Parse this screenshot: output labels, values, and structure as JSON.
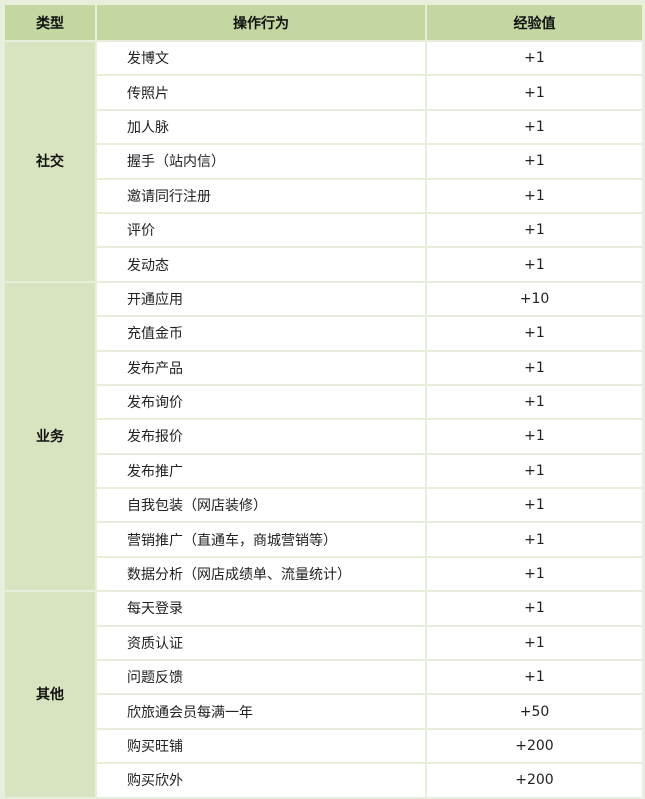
{
  "headers": {
    "type": "类型",
    "action": "操作行为",
    "exp": "经验值"
  },
  "colors": {
    "header_bg": "#c5d7a0",
    "category_bg": "#d8e4bf",
    "border": "#e8eedc"
  },
  "sections": [
    {
      "category": "社交",
      "rows": [
        {
          "action": "发博文",
          "exp": "+1"
        },
        {
          "action": "传照片",
          "exp": "+1"
        },
        {
          "action": "加人脉",
          "exp": "+1"
        },
        {
          "action": "握手（站内信）",
          "exp": "+1"
        },
        {
          "action": "邀请同行注册",
          "exp": "+1"
        },
        {
          "action": "评价",
          "exp": "+1"
        },
        {
          "action": "发动态",
          "exp": "+1"
        }
      ]
    },
    {
      "category": "业务",
      "rows": [
        {
          "action": "开通应用",
          "exp": "+10"
        },
        {
          "action": "充值金币",
          "exp": "+1"
        },
        {
          "action": "发布产品",
          "exp": "+1"
        },
        {
          "action": "发布询价",
          "exp": "+1"
        },
        {
          "action": "发布报价",
          "exp": "+1"
        },
        {
          "action": "发布推广",
          "exp": "+1"
        },
        {
          "action": "自我包装（网店装修）",
          "exp": "+1"
        },
        {
          "action": "营销推广（直通车，商城营销等）",
          "exp": "+1"
        },
        {
          "action": "数据分析（网店成绩单、流量统计）",
          "exp": "+1"
        }
      ]
    },
    {
      "category": "其他",
      "rows": [
        {
          "action": "每天登录",
          "exp": "+1"
        },
        {
          "action": "资质认证",
          "exp": "+1"
        },
        {
          "action": "问题反馈",
          "exp": "+1"
        },
        {
          "action": "欣旅通会员每满一年",
          "exp": "+50"
        },
        {
          "action": "购买旺铺",
          "exp": "+200"
        },
        {
          "action": "购买欣外",
          "exp": "+200"
        }
      ]
    }
  ]
}
